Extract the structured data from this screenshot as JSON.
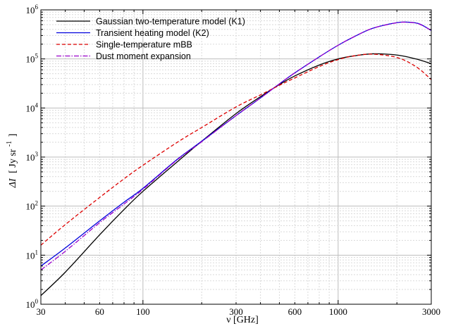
{
  "chart_data": {
    "type": "line",
    "xlabel": "ν [GHz]",
    "ylabel_parts": [
      "ΔI",
      "[ Jy sr",
      "-1",
      "]"
    ],
    "xscale": "log",
    "yscale": "log",
    "xlim": [
      30,
      3000
    ],
    "ylim": [
      1,
      1000000
    ],
    "grid": true,
    "legend_position": "top-left",
    "x_ticks": [
      {
        "value": 30,
        "label": "30"
      },
      {
        "value": 60,
        "label": "60"
      },
      {
        "value": 100,
        "label": "100"
      },
      {
        "value": 300,
        "label": "300"
      },
      {
        "value": 600,
        "label": "600"
      },
      {
        "value": 1000,
        "label": "1000"
      },
      {
        "value": 3000,
        "label": "3000"
      }
    ],
    "y_ticks": [
      {
        "value": 1,
        "base": "10",
        "exp": "0"
      },
      {
        "value": 10,
        "base": "10",
        "exp": "1"
      },
      {
        "value": 100,
        "base": "10",
        "exp": "2"
      },
      {
        "value": 1000,
        "base": "10",
        "exp": "3"
      },
      {
        "value": 10000,
        "base": "10",
        "exp": "4"
      },
      {
        "value": 100000,
        "base": "10",
        "exp": "5"
      },
      {
        "value": 1000000,
        "base": "10",
        "exp": "6"
      }
    ],
    "series": [
      {
        "name": "Gaussian two-temperature model (K1)",
        "color": "#000000",
        "dash": "solid",
        "x": [
          30,
          40,
          60,
          80,
          100,
          150,
          200,
          300,
          400,
          500,
          600,
          800,
          1000,
          1200,
          1500,
          2000,
          2500,
          3000
        ],
        "y": [
          1.5,
          4.5,
          26,
          85,
          200,
          800,
          2100,
          7700,
          17000,
          30000,
          45000,
          75000,
          100000,
          115000,
          127000,
          120000,
          100000,
          80000
        ]
      },
      {
        "name": "Transient heating model (K2)",
        "color": "#0000dd",
        "dash": "solid",
        "x": [
          30,
          40,
          60,
          80,
          100,
          150,
          200,
          300,
          400,
          500,
          600,
          800,
          1000,
          1200,
          1500,
          2000,
          2300,
          2600,
          3000
        ],
        "y": [
          6,
          14,
          50,
          120,
          230,
          900,
          2100,
          7000,
          16000,
          31000,
          52000,
          110000,
          190000,
          280000,
          420000,
          550000,
          560000,
          520000,
          380000
        ]
      },
      {
        "name": "Single-temperature mBB",
        "color": "#dd0000",
        "dash": "dashed",
        "x": [
          30,
          40,
          60,
          80,
          100,
          150,
          200,
          300,
          400,
          500,
          600,
          800,
          1000,
          1200,
          1500,
          2000,
          2500,
          3000
        ],
        "y": [
          16,
          42,
          150,
          360,
          680,
          2000,
          4000,
          10500,
          18500,
          29000,
          41000,
          70000,
          97000,
          115000,
          125000,
          107000,
          70000,
          38000
        ]
      },
      {
        "name": "Dust moment expansion",
        "color": "#9900cc",
        "dash": "dashdot",
        "x": [
          30,
          40,
          60,
          80,
          100,
          150,
          200,
          300,
          400,
          500,
          600,
          800,
          1000,
          1200,
          1500,
          2000,
          2300,
          2600,
          3000
        ],
        "y": [
          5,
          12,
          46,
          110,
          220,
          880,
          2050,
          7000,
          16000,
          31000,
          52000,
          110000,
          190000,
          280000,
          420000,
          545000,
          555000,
          515000,
          380000
        ]
      }
    ]
  }
}
